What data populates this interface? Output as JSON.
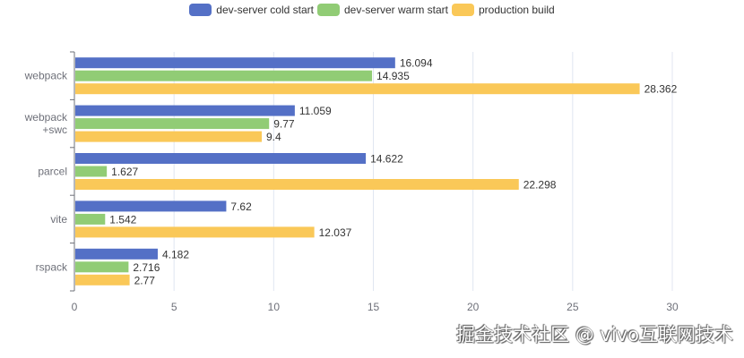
{
  "chart_data": {
    "type": "bar",
    "orientation": "horizontal",
    "categories": [
      "webpack",
      "webpack\n+swc",
      "parcel",
      "vite",
      "rspack"
    ],
    "series": [
      {
        "name": "dev-server cold start",
        "color": "#5470c6",
        "values": [
          16.094,
          11.059,
          14.622,
          7.62,
          4.182
        ]
      },
      {
        "name": "dev-server warm start",
        "color": "#91cc75",
        "values": [
          14.935,
          9.77,
          1.627,
          1.542,
          2.716
        ]
      },
      {
        "name": "production build",
        "color": "#fac858",
        "values": [
          28.362,
          9.4,
          22.298,
          12.037,
          2.77
        ]
      }
    ],
    "xlim": [
      0,
      30
    ],
    "xticks": [
      "0",
      "5",
      "10",
      "15",
      "20",
      "25",
      "30"
    ],
    "grid": true,
    "legend": "top-center",
    "data_labels": true
  },
  "watermark": "掘金技术社区 @ vivo互联网技术"
}
